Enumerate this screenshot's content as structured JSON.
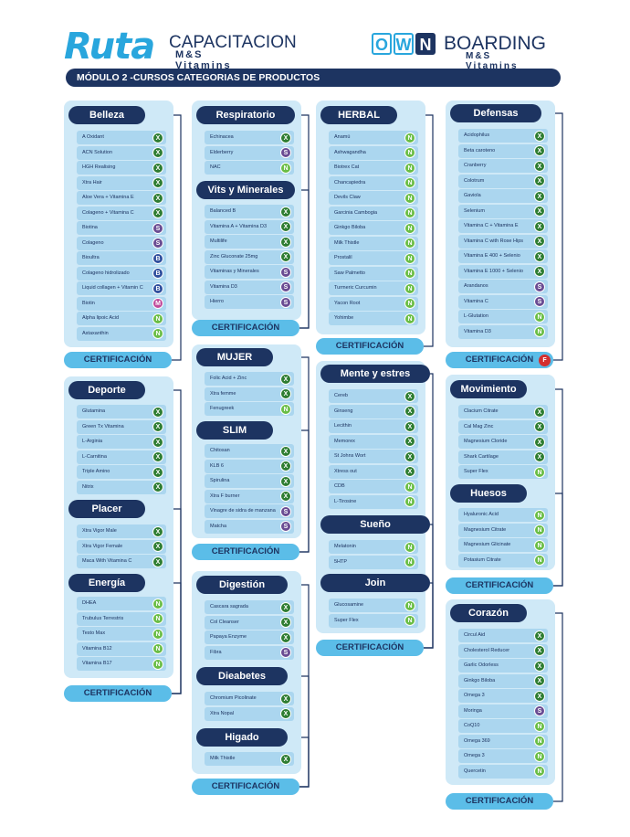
{
  "header": {
    "ruta_logo": "Ruta",
    "ruta_sub1": "CAPACITACION",
    "ruta_sub2": "M&S Vitamins",
    "own_letters": [
      "O",
      "W",
      "N"
    ],
    "own_sub1": "BOARDING",
    "own_sub2": "M&S Vitamins",
    "module_title": "MÓDULO 2 -CURSOS CATEGORIAS DE PRODUCTOS"
  },
  "colors": {
    "X": "#2e7d32",
    "N": "#69bd45",
    "S": "#6a4c93",
    "B": "#2f4f9e",
    "M": "#c04a9b",
    "F": "#d32f2f",
    "navy": "#1d3461",
    "accent": "#5bbde8"
  },
  "cards": [
    {
      "sections": [
        {
          "title": "Belleza",
          "items": [
            [
              "A Oxidant",
              "X"
            ],
            [
              "ACN Solution",
              "X"
            ],
            [
              "HGH Realising",
              "X"
            ],
            [
              "Xtra Hair",
              "X"
            ],
            [
              "Aloe Vera + Vitamina E",
              "X"
            ],
            [
              "Colageno + Vitamina C",
              "X"
            ],
            [
              "Biotina",
              "S"
            ],
            [
              "Colageno",
              "S"
            ],
            [
              "Bioultra",
              "B"
            ],
            [
              "Colageno hidrolizado",
              "B"
            ],
            [
              "Liquid collagen + Vitamin C",
              "B"
            ],
            [
              "Biotin",
              "M"
            ],
            [
              "Alpha lipoic Acid",
              "N"
            ],
            [
              "Astaxanthin",
              "N"
            ]
          ]
        }
      ],
      "cert": "CERTIFICACIÓN",
      "cert_badge": ""
    },
    {
      "sections": [
        {
          "title": "Deporte",
          "items": [
            [
              "Glutamina",
              "X"
            ],
            [
              "Green Tx Vitamina",
              "X"
            ],
            [
              "L-Arginia",
              "X"
            ],
            [
              "L-Carnitina",
              "X"
            ],
            [
              "Triple Amino",
              "X"
            ],
            [
              "Nitrix",
              "X"
            ]
          ]
        },
        {
          "title": "Placer",
          "items": [
            [
              "Xtra Vigor Male",
              "X"
            ],
            [
              "Xtra Vigor Female",
              "X"
            ],
            [
              "Maca With Vitamina C",
              "X"
            ]
          ]
        },
        {
          "title": "Energía",
          "items": [
            [
              "DHEA",
              "N"
            ],
            [
              "Trubulus Terrestris",
              "N"
            ],
            [
              "Testo Max",
              "N"
            ],
            [
              "Vitamina B12",
              "N"
            ],
            [
              "Vitamina B17",
              "N"
            ]
          ]
        }
      ],
      "cert": "CERTIFICACIÓN",
      "cert_badge": ""
    },
    {
      "sections": [
        {
          "title": "Respiratorio",
          "items": [
            [
              "Echinacea",
              "X"
            ],
            [
              "Elderberry",
              "S"
            ],
            [
              "NAC",
              "N"
            ]
          ]
        },
        {
          "title": "Vits y Minerales",
          "items": [
            [
              "Balanced B",
              "X"
            ],
            [
              "Vitamina A + Vitamina D3",
              "X"
            ],
            [
              "Multilife",
              "X"
            ],
            [
              "Zinc Gluconate 25mg",
              "X"
            ],
            [
              "Vitaminas y Minerales",
              "S"
            ],
            [
              "Vitamina D3",
              "S"
            ],
            [
              "Hierro",
              "S"
            ]
          ]
        }
      ],
      "cert": "CERTIFICACIÓN",
      "cert_badge": ""
    },
    {
      "sections": [
        {
          "title": "MUJER",
          "items": [
            [
              "Folic Acid + Zinc",
              "X"
            ],
            [
              "Xtra femme",
              "X"
            ],
            [
              "Fenugreek",
              "N"
            ]
          ]
        },
        {
          "title": "SLIM",
          "items": [
            [
              "Chitosan",
              "X"
            ],
            [
              "KLB 6",
              "X"
            ],
            [
              "Spirulina",
              "X"
            ],
            [
              "Xtra F burner",
              "X"
            ],
            [
              "Vinagre de sidra de manzana",
              "S"
            ],
            [
              "Matcha",
              "S"
            ]
          ]
        }
      ],
      "cert": "CERTIFICACIÓN",
      "cert_badge": ""
    },
    {
      "sections": [
        {
          "title": "Digestión",
          "items": [
            [
              "Cascara sagrada",
              "X"
            ],
            [
              "Col Cleanser",
              "X"
            ],
            [
              "Papaya Enzyme",
              "X"
            ],
            [
              "Fibra",
              "S"
            ]
          ]
        },
        {
          "title": "Dieabetes",
          "items": [
            [
              "Chromium Picolinate",
              "X"
            ],
            [
              "Xtra Nopal",
              "X"
            ]
          ]
        },
        {
          "title": "Higado",
          "items": [
            [
              "Milk Thistle",
              "X"
            ]
          ]
        }
      ],
      "cert": "CERTIFICACIÓN",
      "cert_badge": ""
    },
    {
      "sections": [
        {
          "title": "HERBAL",
          "items": [
            [
              "Anamú",
              "N"
            ],
            [
              "Ashwagandha",
              "N"
            ],
            [
              "Biotrex Cat",
              "N"
            ],
            [
              "Chancapiedra",
              "N"
            ],
            [
              "Devils Claw",
              "N"
            ],
            [
              "Garcinia Cambogia",
              "N"
            ],
            [
              "Ginkgo Biloba",
              "N"
            ],
            [
              "Milk Thistle",
              "N"
            ],
            [
              "Prostalil",
              "N"
            ],
            [
              "Saw Palmetto",
              "N"
            ],
            [
              "Turmeric Curcumin",
              "N"
            ],
            [
              "Yacon Root",
              "N"
            ],
            [
              "Yohimbe",
              "N"
            ]
          ]
        }
      ],
      "cert": "CERTIFICACIÓN",
      "cert_badge": ""
    },
    {
      "sections": [
        {
          "title": "Mente y estres",
          "items": [
            [
              "Cereb",
              "X"
            ],
            [
              "Ginseng",
              "X"
            ],
            [
              "Lecithin",
              "X"
            ],
            [
              "Memorex",
              "X"
            ],
            [
              "St Johns Wort",
              "X"
            ],
            [
              "Xtress out",
              "X"
            ],
            [
              "CDB",
              "N"
            ],
            [
              "L-Tirosine",
              "N"
            ]
          ]
        },
        {
          "title": "Sueño",
          "items": [
            [
              "Melatonin",
              "N"
            ],
            [
              "5HTP",
              "N"
            ]
          ]
        },
        {
          "title": "Join",
          "items": [
            [
              "Glucosamine",
              "N"
            ],
            [
              "Super Flex",
              "N"
            ]
          ]
        }
      ],
      "cert": "CERTIFICACIÓN",
      "cert_badge": ""
    },
    {
      "sections": [
        {
          "title": "Defensas",
          "items": [
            [
              "Acidophilus",
              "X"
            ],
            [
              "Beta caroteno",
              "X"
            ],
            [
              "Cranberry",
              "X"
            ],
            [
              "Colotrum",
              "X"
            ],
            [
              "Gaviola",
              "X"
            ],
            [
              "Selenium",
              "X"
            ],
            [
              "Vitamina C + Vitamina E",
              "X"
            ],
            [
              "Vitamina C with Rose Hips",
              "X"
            ],
            [
              "Vitamina E 400 + Selenio",
              "X"
            ],
            [
              "Vitamina E 1000 + Selenio",
              "X"
            ],
            [
              "Arandanos",
              "S"
            ],
            [
              "Vitamina C",
              "S"
            ],
            [
              "L-Glutation",
              "N"
            ],
            [
              "Vitamina D3",
              "N"
            ]
          ]
        }
      ],
      "cert": "CERTIFICACIÓN",
      "cert_badge": "F"
    },
    {
      "sections": [
        {
          "title": "Movimiento",
          "items": [
            [
              "Clacium Citrate",
              "X"
            ],
            [
              "Cal Mag Zinc",
              "X"
            ],
            [
              "Magnesium Cloride",
              "X"
            ],
            [
              "Shark Cartilage",
              "X"
            ],
            [
              "Super Flex",
              "N"
            ]
          ]
        },
        {
          "title": "Huesos",
          "items": [
            [
              "Hyaluronic Acid",
              "N"
            ],
            [
              "Magnesium Citrate",
              "N"
            ],
            [
              "Magnesium Glicinate",
              "N"
            ],
            [
              "Potasium Citrate",
              "N"
            ]
          ]
        }
      ],
      "cert": "CERTIFICACIÓN",
      "cert_badge": ""
    },
    {
      "sections": [
        {
          "title": "Corazón",
          "items": [
            [
              "Circul Aid",
              "X"
            ],
            [
              "Cholesterol Reducer",
              "X"
            ],
            [
              "Garlic Odorless",
              "X"
            ],
            [
              "Ginkgo Biloba",
              "X"
            ],
            [
              "Omega 3",
              "X"
            ],
            [
              "Moringa",
              "S"
            ],
            [
              "CoQ10",
              "N"
            ],
            [
              "Omega 369",
              "N"
            ],
            [
              "Omega 3",
              "N"
            ],
            [
              "Quercetin",
              "N"
            ]
          ]
        }
      ],
      "cert": "CERTIFICACIÓN",
      "cert_badge": ""
    }
  ]
}
